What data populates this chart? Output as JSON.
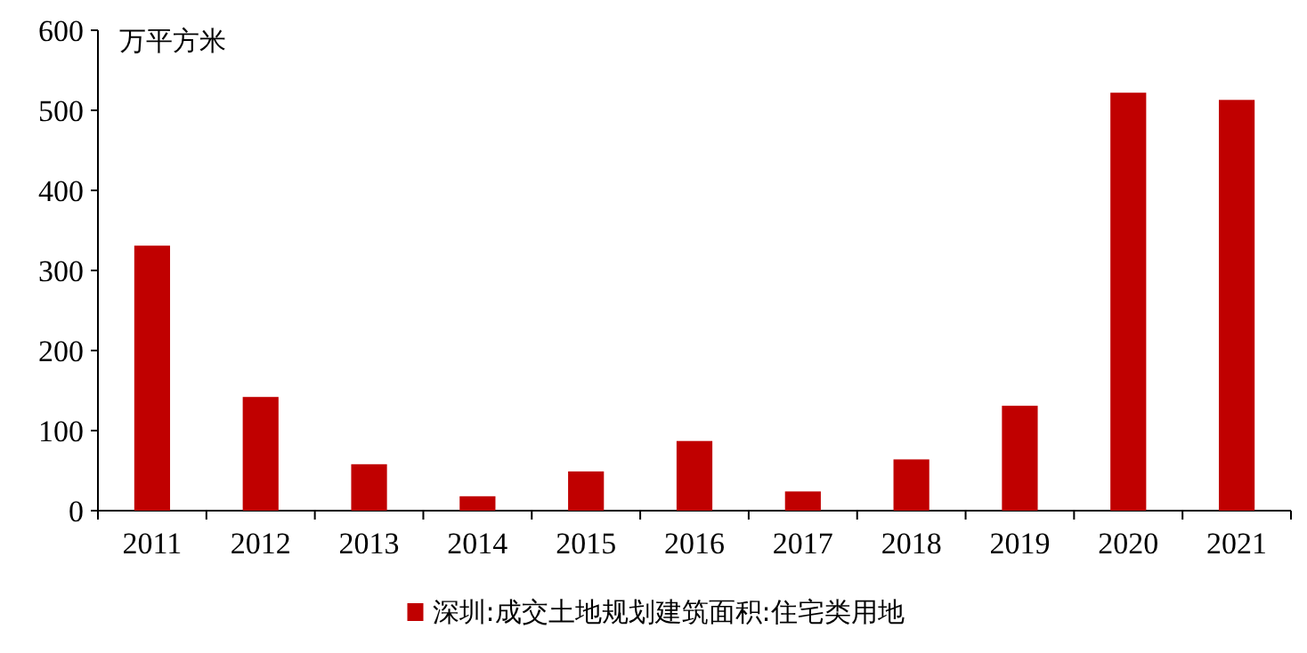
{
  "chart_data": {
    "type": "bar",
    "ylabel": "万平方米",
    "categories": [
      "2011",
      "2012",
      "2013",
      "2014",
      "2015",
      "2016",
      "2017",
      "2018",
      "2019",
      "2020",
      "2021"
    ],
    "series": [
      {
        "name": "深圳:成交土地规划建筑面积:住宅类用地",
        "color": "#c00000",
        "values": [
          331,
          142,
          58,
          18,
          49,
          87,
          24,
          64,
          131,
          522,
          513
        ]
      }
    ],
    "ylim": [
      0,
      600
    ],
    "yticks": [
      0,
      100,
      200,
      300,
      400,
      500,
      600
    ],
    "legend": "bottom"
  }
}
